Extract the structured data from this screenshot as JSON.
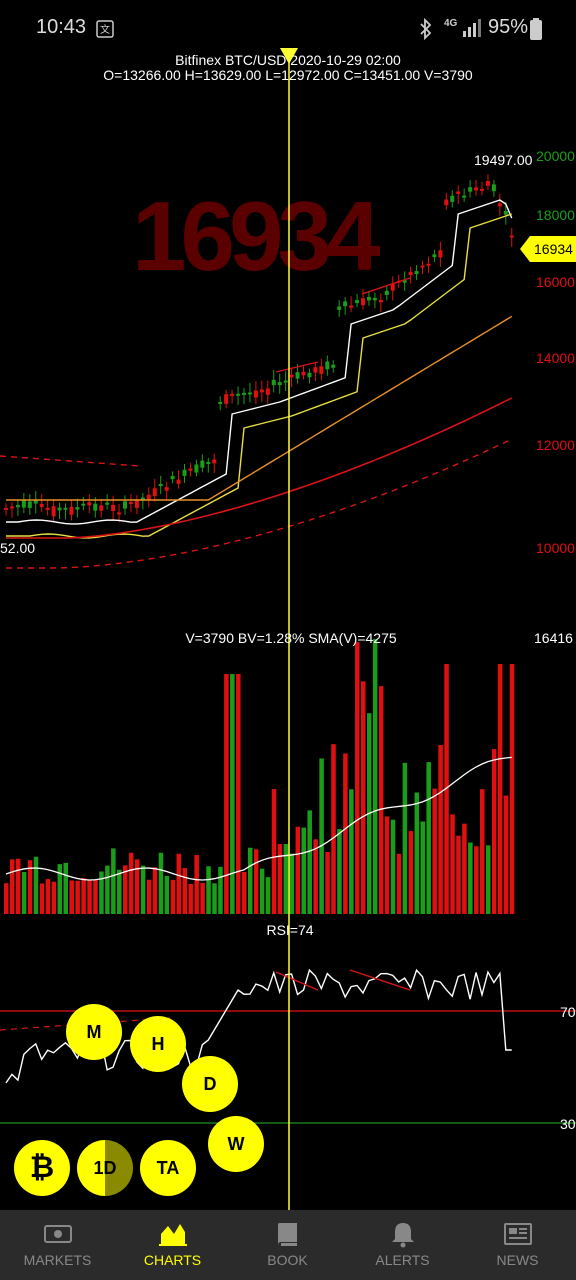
{
  "status_bar": {
    "time": "10:43",
    "battery": "95%",
    "network": "4G",
    "icons": [
      "translate-icon",
      "bluetooth-icon",
      "signal-icon",
      "battery-icon"
    ]
  },
  "chart": {
    "title_line1": "Bitfinex BTC/USD 2020-10-29 02:00",
    "title_line2": "O=13266.00 H=13629.00 L=12972.00 C=13451.00 V=3790",
    "big_price": "16934",
    "current_price_tag": "16934",
    "high_label": "19497.00",
    "low_label": "52.00",
    "y_ticks": [
      "20000",
      "18000",
      "16000",
      "14000",
      "12000",
      "10000"
    ],
    "colors": {
      "up": "#1a9e1a",
      "down": "#e01010",
      "crosshair": "#ffff33",
      "accent": "#ffff00"
    }
  },
  "volume": {
    "label": "V=3790 BV=1.28% SMA(V)=4275",
    "max_label": "16416"
  },
  "rsi": {
    "label": "RSI=74",
    "level_high": "70",
    "level_low": "30"
  },
  "buttons": {
    "m": "M",
    "h": "H",
    "d": "D",
    "w": "W",
    "bitcoin": "₿",
    "timeframe": "1D",
    "ta": "TA"
  },
  "tabs": [
    {
      "label": "MARKETS",
      "icon": "banknote-icon",
      "active": false
    },
    {
      "label": "CHARTS",
      "icon": "chart-icon",
      "active": true
    },
    {
      "label": "BOOK",
      "icon": "book-icon",
      "active": false
    },
    {
      "label": "ALERTS",
      "icon": "bell-icon",
      "active": false
    },
    {
      "label": "NEWS",
      "icon": "newspaper-icon",
      "active": false
    }
  ]
}
